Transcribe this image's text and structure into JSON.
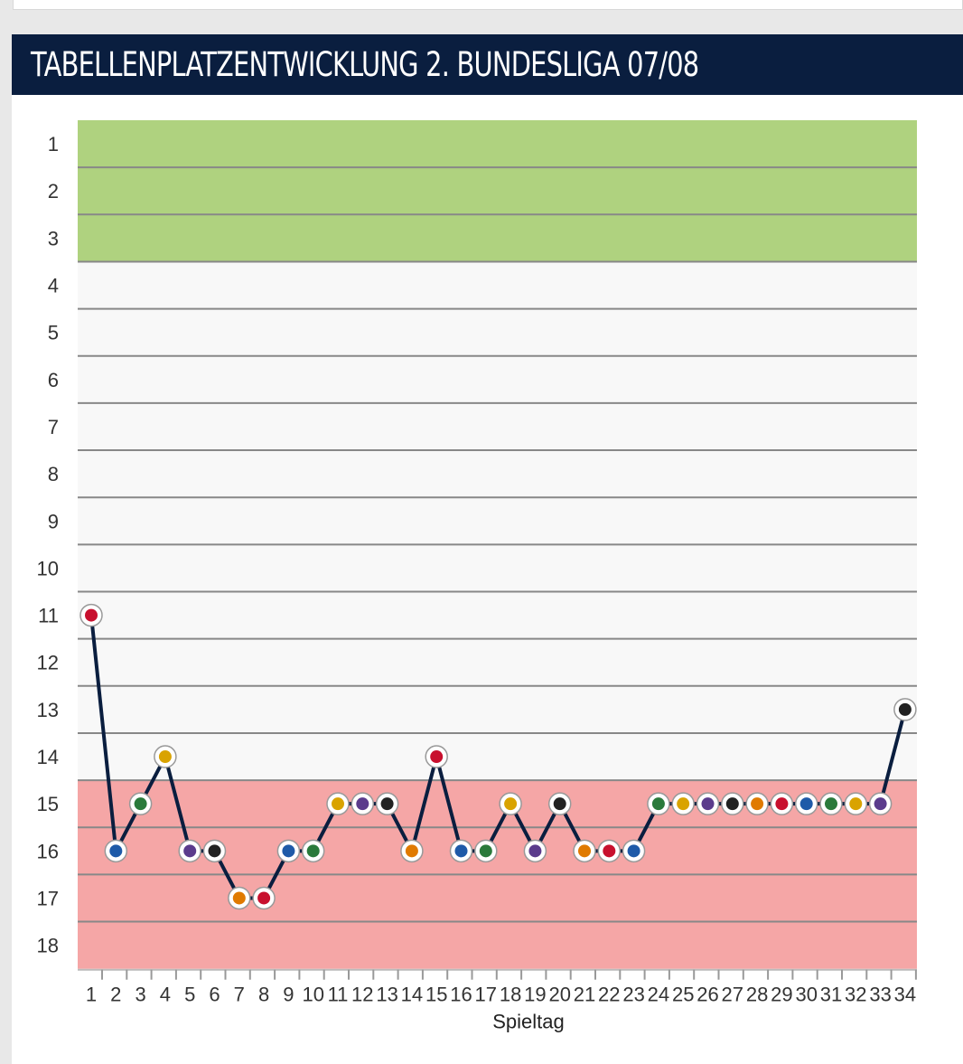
{
  "header": {
    "title": "TABELLENPLATZENTWICKLUNG 2. BUNDESLIGA 07/08"
  },
  "colors": {
    "header_bg": "#0a1e3f",
    "promotion_zone": "#afd27f",
    "relegation_zone": "#f5a6a6",
    "neutral_zone": "#f8f8f8",
    "line": "#0a1e3f"
  },
  "chart_data": {
    "type": "line",
    "title": "",
    "xlabel": "Spieltag",
    "ylabel": "",
    "x": [
      1,
      2,
      3,
      4,
      5,
      6,
      7,
      8,
      9,
      10,
      11,
      12,
      13,
      14,
      15,
      16,
      17,
      18,
      19,
      20,
      21,
      22,
      23,
      24,
      25,
      26,
      27,
      28,
      29,
      30,
      31,
      32,
      33,
      34
    ],
    "y_ticks": [
      1,
      2,
      3,
      4,
      5,
      6,
      7,
      8,
      9,
      10,
      11,
      12,
      13,
      14,
      15,
      16,
      17,
      18
    ],
    "ylim": [
      1,
      18
    ],
    "y_inverted": true,
    "zones": [
      {
        "from": 1,
        "to": 3,
        "color": "#afd27f"
      },
      {
        "from": 4,
        "to": 14,
        "color": "#f8f8f8"
      },
      {
        "from": 15,
        "to": 18,
        "color": "#f5a6a6"
      }
    ],
    "series": [
      {
        "values": [
          11,
          16,
          15,
          14,
          16,
          16,
          17,
          17,
          16,
          16,
          15,
          15,
          15,
          16,
          14,
          16,
          16,
          15,
          16,
          15,
          16,
          16,
          16,
          15,
          15,
          15,
          15,
          15,
          15,
          15,
          15,
          15,
          15,
          13
        ]
      }
    ],
    "grid": true,
    "legend": "none"
  }
}
